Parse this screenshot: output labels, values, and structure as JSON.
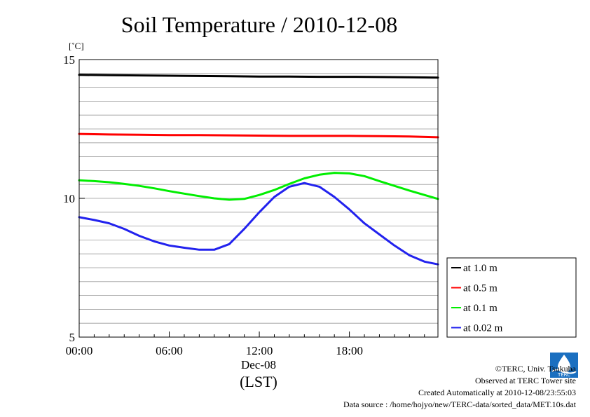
{
  "chart_data": {
    "type": "line",
    "title": "Soil Temperature / 2010-12-08",
    "unit_label": "[˚C]",
    "ylim": [
      5,
      15
    ],
    "ytick_labels": [
      "15",
      "10",
      "5"
    ],
    "xlim_hours": [
      0,
      23.9
    ],
    "xtick_labels": [
      "00:00",
      "06:00",
      "12:00",
      "18:00"
    ],
    "x_date_label": "Dec-08",
    "x_axis_label": "(LST)",
    "grid": true,
    "legend_position": "right",
    "series": [
      {
        "name": "at 1.0 m",
        "color": "#000000",
        "x": [
          0,
          2,
          4,
          6,
          8,
          10,
          12,
          14,
          16,
          18,
          20,
          22,
          23.9
        ],
        "y": [
          14.45,
          14.44,
          14.43,
          14.42,
          14.41,
          14.4,
          14.39,
          14.39,
          14.38,
          14.38,
          14.37,
          14.36,
          14.35
        ]
      },
      {
        "name": "at 0.5 m",
        "color": "#ff0000",
        "x": [
          0,
          2,
          4,
          6,
          8,
          10,
          12,
          14,
          16,
          18,
          20,
          22,
          23.9
        ],
        "y": [
          12.32,
          12.3,
          12.29,
          12.28,
          12.28,
          12.27,
          12.26,
          12.25,
          12.25,
          12.25,
          12.24,
          12.23,
          12.2
        ]
      },
      {
        "name": "at 0.1 m",
        "color": "#00ee00",
        "x": [
          0,
          1,
          2,
          3,
          4,
          5,
          6,
          7,
          8,
          9,
          10,
          11,
          12,
          13,
          14,
          15,
          16,
          17,
          18,
          19,
          20,
          21,
          22,
          23,
          23.9
        ],
        "y": [
          10.65,
          10.62,
          10.58,
          10.52,
          10.45,
          10.36,
          10.26,
          10.17,
          10.08,
          10.0,
          9.95,
          9.98,
          10.12,
          10.3,
          10.52,
          10.72,
          10.85,
          10.92,
          10.9,
          10.8,
          10.62,
          10.45,
          10.28,
          10.12,
          9.98
        ]
      },
      {
        "name": "at 0.02 m",
        "color": "#2222ee",
        "x": [
          0,
          1,
          2,
          3,
          4,
          5,
          6,
          7,
          8,
          9,
          10,
          11,
          12,
          13,
          14,
          15,
          16,
          17,
          18,
          19,
          20,
          21,
          22,
          23,
          23.9
        ],
        "y": [
          9.32,
          9.22,
          9.1,
          8.9,
          8.65,
          8.45,
          8.3,
          8.22,
          8.15,
          8.15,
          8.35,
          8.9,
          9.5,
          10.05,
          10.42,
          10.55,
          10.42,
          10.05,
          9.6,
          9.1,
          8.7,
          8.3,
          7.95,
          7.72,
          7.62
        ]
      }
    ]
  },
  "footer": {
    "copyright": "©TERC, Univ. Tsukuba",
    "observed": "Observed at TERC Tower site",
    "created": "Created Automatically at 2010-12-08/23:55:03",
    "source": "Data source : /home/hojyo/new/TERC-data/sorted_data/MET.10s.dat"
  },
  "logo": {
    "text": "TERC",
    "color": "#1a6fc0"
  }
}
